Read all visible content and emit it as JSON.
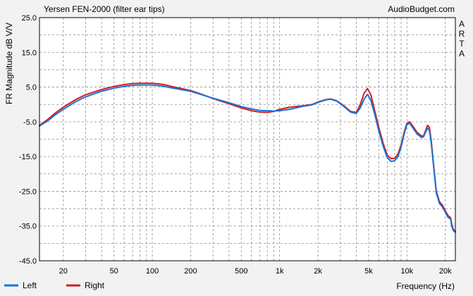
{
  "chart_data": {
    "type": "line",
    "title": "Yersen FEN-2000 (filter ear tips)",
    "watermark": "AudioBudget.com",
    "side_label": [
      "A",
      "R",
      "T",
      "A"
    ],
    "xlabel": "Frequency (Hz)",
    "ylabel": "FR Magnitude dB V/V",
    "x_scale": "log",
    "xlim": [
      13,
      24000
    ],
    "ylim": [
      -45,
      25
    ],
    "x_ticks": [
      {
        "v": 20,
        "label": "20"
      },
      {
        "v": 50,
        "label": "50"
      },
      {
        "v": 100,
        "label": "100"
      },
      {
        "v": 200,
        "label": "200"
      },
      {
        "v": 500,
        "label": "500"
      },
      {
        "v": 1000,
        "label": "1k"
      },
      {
        "v": 2000,
        "label": "2k"
      },
      {
        "v": 5000,
        "label": "5k"
      },
      {
        "v": 10000,
        "label": "10k"
      },
      {
        "v": 20000,
        "label": "20k"
      }
    ],
    "y_ticks": [
      {
        "v": 25,
        "label": "25.0"
      },
      {
        "v": 15,
        "label": "15.0"
      },
      {
        "v": 5,
        "label": "5.0"
      },
      {
        "v": -5,
        "label": "-5.0"
      },
      {
        "v": -15,
        "label": "-15.0"
      },
      {
        "v": -25,
        "label": "-25.0"
      },
      {
        "v": -35,
        "label": "-35.0"
      },
      {
        "v": -45,
        "label": "-45.0"
      }
    ],
    "grid": true,
    "legend_position": "bottom-left",
    "series": [
      {
        "name": "Left",
        "color": "#1a73d9",
        "points": [
          [
            13,
            -6.2
          ],
          [
            15,
            -4.8
          ],
          [
            17,
            -3.2
          ],
          [
            20,
            -1.4
          ],
          [
            25,
            0.8
          ],
          [
            30,
            2.2
          ],
          [
            40,
            3.8
          ],
          [
            50,
            4.7
          ],
          [
            60,
            5.2
          ],
          [
            70,
            5.5
          ],
          [
            80,
            5.6
          ],
          [
            100,
            5.6
          ],
          [
            120,
            5.3
          ],
          [
            150,
            4.6
          ],
          [
            200,
            3.8
          ],
          [
            250,
            2.7
          ],
          [
            300,
            1.8
          ],
          [
            400,
            0.5
          ],
          [
            500,
            -0.6
          ],
          [
            600,
            -1.3
          ],
          [
            700,
            -1.7
          ],
          [
            800,
            -1.8
          ],
          [
            900,
            -1.9
          ],
          [
            1000,
            -1.8
          ],
          [
            1200,
            -1.4
          ],
          [
            1500,
            -0.6
          ],
          [
            1800,
            -0.1
          ],
          [
            2000,
            0.6
          ],
          [
            2300,
            1.3
          ],
          [
            2500,
            1.5
          ],
          [
            2800,
            1.0
          ],
          [
            3200,
            -0.6
          ],
          [
            3600,
            -2.2
          ],
          [
            4000,
            -2.6
          ],
          [
            4300,
            -1.0
          ],
          [
            4600,
            1.5
          ],
          [
            4900,
            2.9
          ],
          [
            5200,
            1.2
          ],
          [
            5600,
            -3.0
          ],
          [
            6000,
            -7.5
          ],
          [
            6500,
            -12.0
          ],
          [
            7000,
            -15.3
          ],
          [
            7500,
            -16.4
          ],
          [
            8000,
            -16.2
          ],
          [
            8500,
            -15.0
          ],
          [
            9000,
            -12.2
          ],
          [
            9500,
            -8.5
          ],
          [
            10000,
            -5.8
          ],
          [
            10500,
            -5.4
          ],
          [
            11000,
            -6.5
          ],
          [
            12000,
            -8.5
          ],
          [
            13000,
            -9.5
          ],
          [
            13500,
            -9.3
          ],
          [
            14000,
            -8.0
          ],
          [
            14500,
            -6.8
          ],
          [
            15000,
            -7.5
          ],
          [
            15500,
            -11.0
          ],
          [
            16000,
            -16.0
          ],
          [
            17000,
            -25.5
          ],
          [
            18000,
            -28.5
          ],
          [
            19000,
            -29.5
          ],
          [
            20000,
            -31.0
          ],
          [
            21000,
            -32.5
          ],
          [
            22000,
            -33.0
          ],
          [
            22500,
            -35.0
          ],
          [
            23000,
            -36.2
          ],
          [
            24000,
            -36.8
          ]
        ]
      },
      {
        "name": "Right",
        "color": "#d41c1c",
        "points": [
          [
            13,
            -6.0
          ],
          [
            15,
            -4.4
          ],
          [
            17,
            -2.7
          ],
          [
            20,
            -0.8
          ],
          [
            25,
            1.4
          ],
          [
            30,
            2.8
          ],
          [
            40,
            4.3
          ],
          [
            50,
            5.2
          ],
          [
            60,
            5.7
          ],
          [
            70,
            6.0
          ],
          [
            80,
            6.1
          ],
          [
            100,
            6.1
          ],
          [
            120,
            5.8
          ],
          [
            150,
            5.0
          ],
          [
            200,
            4.0
          ],
          [
            250,
            2.8
          ],
          [
            300,
            1.7
          ],
          [
            400,
            0.2
          ],
          [
            500,
            -1.0
          ],
          [
            600,
            -1.8
          ],
          [
            700,
            -2.2
          ],
          [
            800,
            -2.3
          ],
          [
            900,
            -2.0
          ],
          [
            1000,
            -1.4
          ],
          [
            1200,
            -0.8
          ],
          [
            1500,
            -0.4
          ],
          [
            1800,
            0.0
          ],
          [
            2000,
            0.7
          ],
          [
            2300,
            1.4
          ],
          [
            2500,
            1.6
          ],
          [
            2800,
            1.1
          ],
          [
            3200,
            -0.4
          ],
          [
            3600,
            -2.0
          ],
          [
            4000,
            -2.3
          ],
          [
            4300,
            0.0
          ],
          [
            4600,
            3.2
          ],
          [
            4900,
            4.6
          ],
          [
            5200,
            2.8
          ],
          [
            5600,
            -2.0
          ],
          [
            6000,
            -6.5
          ],
          [
            6500,
            -11.2
          ],
          [
            7000,
            -14.6
          ],
          [
            7500,
            -15.6
          ],
          [
            8000,
            -15.5
          ],
          [
            8500,
            -14.3
          ],
          [
            9000,
            -11.6
          ],
          [
            9500,
            -8.0
          ],
          [
            10000,
            -5.4
          ],
          [
            10500,
            -5.0
          ],
          [
            11000,
            -6.0
          ],
          [
            12000,
            -8.0
          ],
          [
            13000,
            -9.1
          ],
          [
            13500,
            -9.0
          ],
          [
            14000,
            -7.5
          ],
          [
            14500,
            -6.0
          ],
          [
            15000,
            -6.6
          ],
          [
            15500,
            -10.3
          ],
          [
            16000,
            -15.5
          ],
          [
            17000,
            -25.0
          ],
          [
            18000,
            -28.0
          ],
          [
            19000,
            -29.0
          ],
          [
            20000,
            -30.6
          ],
          [
            21000,
            -32.0
          ],
          [
            22000,
            -32.6
          ],
          [
            22500,
            -34.5
          ],
          [
            23000,
            -35.8
          ],
          [
            24000,
            -36.6
          ]
        ]
      }
    ]
  }
}
